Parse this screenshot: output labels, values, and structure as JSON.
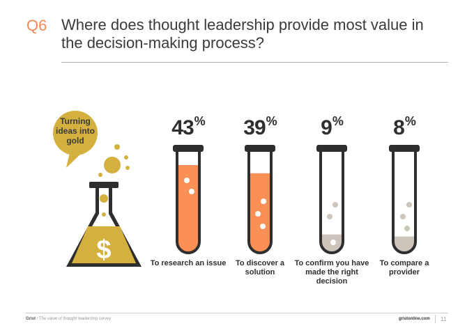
{
  "header": {
    "question_number": "Q6",
    "title": "Where does thought leadership provide most value in the decision-making process?"
  },
  "bubble": {
    "text": "Turning ideas into gold",
    "icon": "dollar-flask-icon"
  },
  "colors": {
    "accent": "#ef8a5a",
    "orange": "#fa9056",
    "grey": "#cdc5bb",
    "gold": "#d4b13e",
    "dark": "#2e2e2e"
  },
  "chart_data": {
    "type": "bar",
    "categories": [
      "To research an issue",
      "To discover a solution",
      "To confirm you have made the right decision",
      "To compare a provider"
    ],
    "values": [
      43,
      39,
      9,
      8
    ],
    "value_labels": [
      "43",
      "39",
      "9",
      "8"
    ],
    "unit": "%",
    "fill_colors": [
      "#fa9056",
      "#fa9056",
      "#cdc5bb",
      "#cdc5bb"
    ]
  },
  "footer": {
    "brand": "Grist",
    "report": "/ The value of thought leadership survey",
    "site": "gristonline.com",
    "page": "11"
  }
}
